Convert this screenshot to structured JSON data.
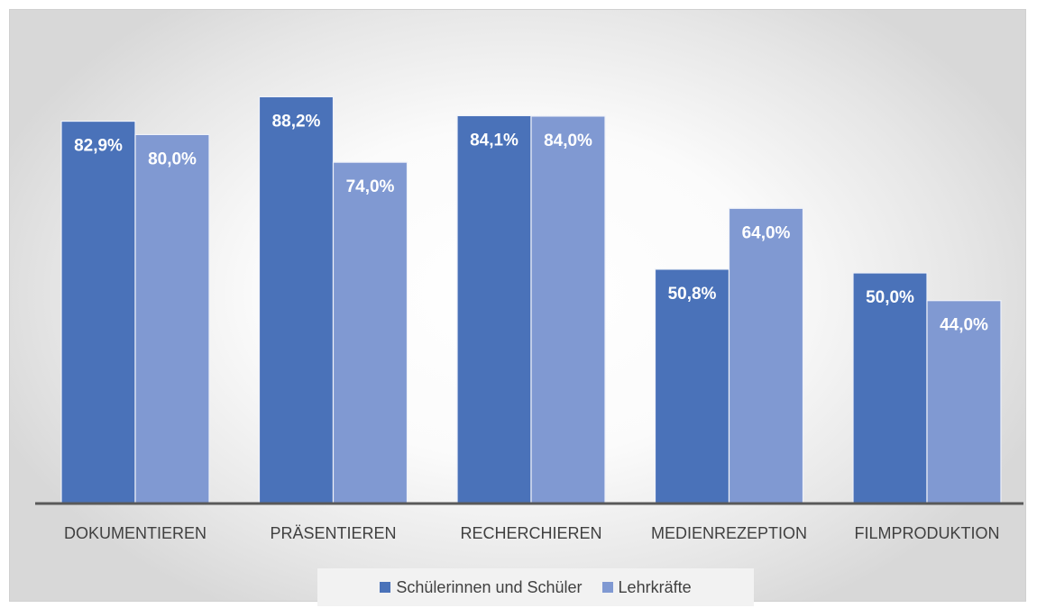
{
  "chart_data": {
    "type": "bar",
    "categories": [
      "DOKUMENTIEREN",
      "PRÄSENTIEREN",
      "RECHERCHIEREN",
      "MEDIENREZEPTION",
      "FILMPRODUKTION"
    ],
    "series": [
      {
        "name": "Schülerinnen und Schüler",
        "values": [
          82.9,
          88.2,
          84.1,
          50.8,
          50.0
        ],
        "labels": [
          "82,9%",
          "88,2%",
          "84,1%",
          "50,8%",
          "50,0%"
        ],
        "color": "#4a72b9"
      },
      {
        "name": "Lehrkräfte",
        "values": [
          80.0,
          74.0,
          84.0,
          64.0,
          44.0
        ],
        "labels": [
          "80,0%",
          "74,0%",
          "84,0%",
          "64,0%",
          "44,0%"
        ],
        "color": "#8099d2"
      }
    ],
    "ylim": [
      0,
      100
    ],
    "grid": false,
    "legend_position": "bottom"
  }
}
